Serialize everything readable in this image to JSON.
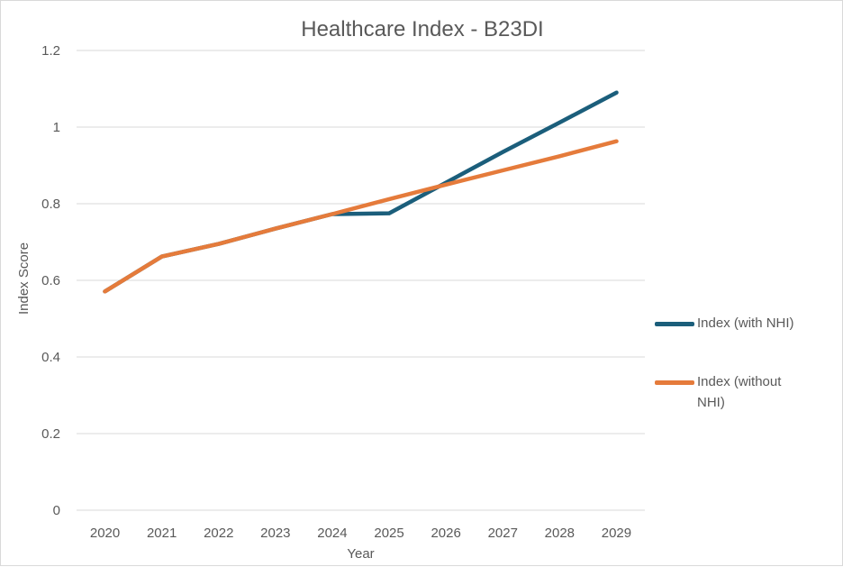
{
  "chart_data": {
    "type": "line",
    "title": "Healthcare Index - B23DI",
    "xlabel": "Year",
    "ylabel": "Index Score",
    "categories": [
      "2020",
      "2021",
      "2022",
      "2023",
      "2024",
      "2025",
      "2026",
      "2027",
      "2028",
      "2029"
    ],
    "ylim": [
      0,
      1.2
    ],
    "yticks": [
      "0",
      "0.2",
      "0.4",
      "0.6",
      "0.8",
      "1",
      "1.2"
    ],
    "grid": true,
    "legend_position": "right",
    "series": [
      {
        "name": "Index (with NHI)",
        "color": "#1b5e7b",
        "values": [
          0.571,
          0.662,
          0.695,
          0.735,
          0.773,
          0.775,
          0.855,
          0.935,
          1.012,
          1.09
        ]
      },
      {
        "name": "Index (without NHI)",
        "color": "#e57b3b",
        "values": [
          0.571,
          0.662,
          0.695,
          0.735,
          0.773,
          0.812,
          0.85,
          0.887,
          0.924,
          0.963
        ]
      }
    ]
  }
}
